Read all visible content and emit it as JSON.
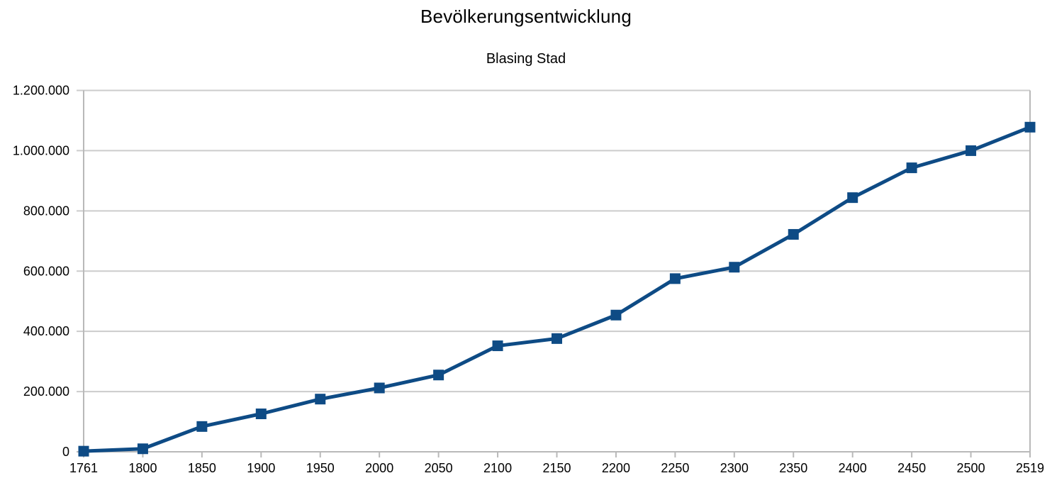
{
  "chart_data": {
    "type": "line",
    "title": "Bevölkerungsentwicklung",
    "subtitle": "Blasing Stad",
    "xlabel": "",
    "ylabel": "",
    "categories": [
      "1761",
      "1800",
      "1850",
      "1900",
      "1950",
      "2000",
      "2050",
      "2100",
      "2150",
      "2200",
      "2250",
      "2300",
      "2350",
      "2400",
      "2450",
      "2500",
      "2519"
    ],
    "values": [
      2000,
      10000,
      84000,
      126000,
      175000,
      212000,
      255000,
      352000,
      376000,
      454000,
      575000,
      613000,
      722000,
      844000,
      943000,
      1000000,
      1078000
    ],
    "ylim": [
      0,
      1200000
    ],
    "y_ticks": [
      0,
      200000,
      400000,
      600000,
      800000,
      1000000,
      1200000
    ],
    "y_tick_labels": [
      "0",
      "200.000",
      "400.000",
      "600.000",
      "800.000",
      "1.000.000",
      "1.200.000"
    ],
    "grid": "horizontal-only",
    "legend": "none",
    "marker": "square",
    "number_format": "de-DE",
    "colors": {
      "line": "#0e4b85",
      "marker": "#0e4b85",
      "gridline": "#cccccc",
      "axis": "#b9b9b9",
      "text": "#000000",
      "background": "#ffffff"
    }
  }
}
